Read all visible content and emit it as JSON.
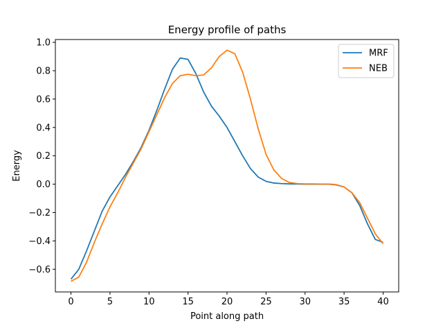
{
  "chart_data": {
    "type": "line",
    "title": "Energy profile of paths",
    "xlabel": "Point along path",
    "ylabel": "Energy",
    "xlim": [
      -2,
      42
    ],
    "ylim": [
      -0.76,
      1.02
    ],
    "xticks": [
      0,
      5,
      10,
      15,
      20,
      25,
      30,
      35,
      40
    ],
    "yticks": [
      -0.6,
      -0.4,
      -0.2,
      0.0,
      0.2,
      0.4,
      0.6,
      0.8,
      1.0
    ],
    "xtick_labels": [
      "0",
      "5",
      "10",
      "15",
      "20",
      "25",
      "30",
      "35",
      "40"
    ],
    "ytick_labels": [
      "−0.6",
      "−0.4",
      "−0.2",
      "0.0",
      "0.2",
      "0.4",
      "0.6",
      "0.8",
      "1.0"
    ],
    "grid": false,
    "legend_position": "top-right",
    "x": [
      0,
      1,
      2,
      3,
      4,
      5,
      6,
      7,
      8,
      9,
      10,
      11,
      12,
      13,
      14,
      15,
      16,
      17,
      18,
      19,
      20,
      21,
      22,
      23,
      24,
      25,
      26,
      27,
      28,
      29,
      30,
      31,
      32,
      33,
      34,
      35,
      36,
      37,
      38,
      39,
      40
    ],
    "series": [
      {
        "name": "MRF",
        "color": "#1f77b4",
        "values": [
          -0.67,
          -0.6,
          -0.47,
          -0.33,
          -0.19,
          -0.09,
          -0.01,
          0.07,
          0.16,
          0.26,
          0.38,
          0.52,
          0.67,
          0.81,
          0.89,
          0.88,
          0.78,
          0.65,
          0.55,
          0.48,
          0.4,
          0.3,
          0.2,
          0.11,
          0.05,
          0.02,
          0.008,
          0.004,
          0.002,
          0.001,
          0.0,
          0.0,
          0.0,
          0.0,
          -0.005,
          -0.02,
          -0.06,
          -0.15,
          -0.28,
          -0.39,
          -0.41
        ]
      },
      {
        "name": "NEB",
        "color": "#ff7f0e",
        "values": [
          -0.685,
          -0.655,
          -0.55,
          -0.41,
          -0.28,
          -0.16,
          -0.06,
          0.05,
          0.15,
          0.25,
          0.37,
          0.49,
          0.61,
          0.71,
          0.765,
          0.775,
          0.765,
          0.77,
          0.82,
          0.9,
          0.945,
          0.92,
          0.79,
          0.6,
          0.39,
          0.21,
          0.1,
          0.04,
          0.012,
          0.004,
          0.002,
          0.002,
          0.001,
          0.001,
          -0.003,
          -0.02,
          -0.06,
          -0.13,
          -0.24,
          -0.35,
          -0.42
        ]
      }
    ]
  }
}
